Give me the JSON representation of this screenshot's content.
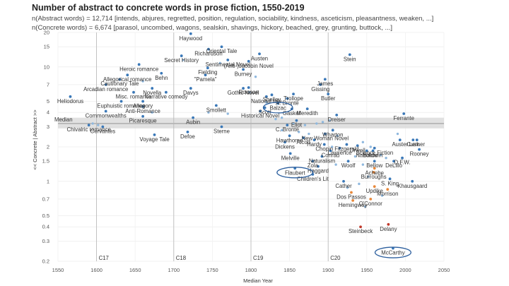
{
  "header": {
    "title": "Number of abstract to concrete words in prose fiction, 1550-2019",
    "subtitle_abstract": "n(Abstract words) = 12,714 [intends, abjures, regretted, position, regulation, sociability, kindness, asceticism, pleasantness, weaken, ...]",
    "subtitle_concrete": "n(Concrete words) = 6,674 [parasol, uncombed, wagons, sealskin, shavings, hickory, beached, grey, grunting, buttock, ...]"
  },
  "colors": {
    "point": "#3a78b8",
    "point_light": "#8fb8de",
    "point_orange": "#e8883a",
    "point_red": "#c0392b",
    "band": "#d9d9d9",
    "highlight_ellipse": "#2c5f9e"
  },
  "chart_data": {
    "type": "scatter",
    "xlabel": "Median Year",
    "ylabel": "<< Concrete | Abstract >>",
    "x_range": [
      1550,
      2050
    ],
    "y_range": [
      0.2,
      20
    ],
    "y_scale": "log",
    "x_ticks": [
      1550,
      1600,
      1650,
      1700,
      1750,
      1800,
      1850,
      1900,
      1950,
      2000,
      2050
    ],
    "y_ticks": [
      20,
      15,
      10,
      7,
      5,
      4,
      3,
      2,
      1.5,
      1,
      0.7,
      0.5,
      0.4,
      0.3,
      0.2
    ],
    "century_markers": [
      {
        "label": "C17",
        "x": 1600
      },
      {
        "label": "C18",
        "x": 1700
      },
      {
        "label": "C19",
        "x": 1800
      },
      {
        "label": "C20",
        "x": 1900
      }
    ],
    "median_line": {
      "label": "Median",
      "y": 3.2,
      "band": [
        2.9,
        3.6
      ]
    },
    "points": [
      {
        "label": "Haywood",
        "x": 1722,
        "y": 19.5
      },
      {
        "label": "Richardson",
        "x": 1745,
        "y": 14.3
      },
      {
        "label": "Oriental Tale",
        "x": 1762,
        "y": 15.0
      },
      {
        "label": "Austen",
        "x": 1811,
        "y": 13.0
      },
      {
        "label": "Stein",
        "x": 1928,
        "y": 12.8
      },
      {
        "label": "Heroic romance",
        "x": 1655,
        "y": 10.5
      },
      {
        "label": "Secret History",
        "x": 1710,
        "y": 12.5
      },
      {
        "label": "Sentimental Novel",
        "x": 1770,
        "y": 11.5
      },
      {
        "label": "(Anti-)Jacobin Novel",
        "x": 1797,
        "y": 11.2
      },
      {
        "label": "Fielding",
        "x": 1744,
        "y": 9.8
      },
      {
        "label": "Burney",
        "x": 1790,
        "y": 9.5
      },
      {
        "label": "Allegorical romance",
        "x": 1640,
        "y": 8.5
      },
      {
        "label": "Cautionary Tale",
        "x": 1630,
        "y": 7.8
      },
      {
        "label": "\"Pamela\"",
        "x": 1741,
        "y": 8.5
      },
      {
        "label": "Behn",
        "x": 1684,
        "y": 8.8
      },
      {
        "label": "Arcadian romance",
        "x": 1612,
        "y": 7.0
      },
      {
        "label": "James",
        "x": 1896,
        "y": 7.8
      },
      {
        "label": "Novella",
        "x": 1672,
        "y": 6.5
      },
      {
        "label": "Davys",
        "x": 1722,
        "y": 6.5
      },
      {
        "label": "Rowson",
        "x": 1797,
        "y": 6.6
      },
      {
        "label": "Gothic Novel",
        "x": 1790,
        "y": 6.5
      },
      {
        "label": "Gissing",
        "x": 1890,
        "y": 7.0
      },
      {
        "label": "Narrative comedy",
        "x": 1690,
        "y": 6.0
      },
      {
        "label": "Misc. romance",
        "x": 1648,
        "y": 6.0
      },
      {
        "label": "Trollope",
        "x": 1855,
        "y": 5.8
      },
      {
        "label": "Shelley",
        "x": 1827,
        "y": 5.7
      },
      {
        "label": "Butler",
        "x": 1900,
        "y": 5.8
      },
      {
        "label": "National tale",
        "x": 1820,
        "y": 5.5
      },
      {
        "label": "Euphuistic romance",
        "x": 1632,
        "y": 5.0
      },
      {
        "label": "Allegory",
        "x": 1660,
        "y": 5.0
      },
      {
        "label": "A. Brontë",
        "x": 1847,
        "y": 5.3
      },
      {
        "label": "Balzac",
        "x": 1835,
        "y": 4.8
      },
      {
        "label": "Anti-Romance",
        "x": 1660,
        "y": 4.5
      },
      {
        "label": "Smollett",
        "x": 1755,
        "y": 4.6
      },
      {
        "label": "Scott",
        "x": 1818,
        "y": 4.4
      },
      {
        "label": "Gaskell",
        "x": 1853,
        "y": 4.3
      },
      {
        "label": "Meredith",
        "x": 1873,
        "y": 4.3
      },
      {
        "label": "Heliodorus",
        "x": 1566,
        "y": 5.5
      },
      {
        "label": "Commonwealths",
        "x": 1612,
        "y": 4.1
      },
      {
        "label": "Historical Novel",
        "x": 1812,
        "y": 4.1
      },
      {
        "label": "Dreiser",
        "x": 1911,
        "y": 3.8
      },
      {
        "label": "Ferrante",
        "x": 1998,
        "y": 3.9
      },
      {
        "label": "Picaresque",
        "x": 1660,
        "y": 3.7
      },
      {
        "label": "Aubin",
        "x": 1725,
        "y": 3.6
      },
      {
        "label": "Eliot",
        "x": 1859,
        "y": 3.4
      },
      {
        "label": "Cervantes",
        "x": 1608,
        "y": 3.0
      },
      {
        "label": "Chivalric romance",
        "x": 1590,
        "y": 3.1
      },
      {
        "label": "Sterne",
        "x": 1762,
        "y": 3.0
      },
      {
        "label": "C. Brontë",
        "x": 1847,
        "y": 3.1
      },
      {
        "label": "Wharton",
        "x": 1906,
        "y": 2.8
      },
      {
        "label": "Defoe",
        "x": 1718,
        "y": 2.7
      },
      {
        "label": "New Woman Novel",
        "x": 1896,
        "y": 2.6
      },
      {
        "label": "Voyage Tale",
        "x": 1675,
        "y": 2.55
      },
      {
        "label": "Hawthorne",
        "x": 1850,
        "y": 2.5
      },
      {
        "label": "Alcott",
        "x": 1868,
        "y": 2.4
      },
      {
        "label": "Hardy",
        "x": 1882,
        "y": 2.3
      },
      {
        "label": "Auster",
        "x": 1993,
        "y": 2.3
      },
      {
        "label": "Cusk",
        "x": 2010,
        "y": 2.3
      },
      {
        "label": "Lerner",
        "x": 2015,
        "y": 2.3
      },
      {
        "label": "Dickens",
        "x": 1844,
        "y": 2.2
      },
      {
        "label": "Chopin",
        "x": 1895,
        "y": 2.1
      },
      {
        "label": "Fitzgerald",
        "x": 1924,
        "y": 2.1
      },
      {
        "label": "Orwell",
        "x": 1938,
        "y": 2.05
      },
      {
        "label": "Lawrence",
        "x": 1915,
        "y": 1.95
      },
      {
        "label": "Science Fiction",
        "x": 1960,
        "y": 1.95
      },
      {
        "label": "Rooney",
        "x": 2018,
        "y": 1.9
      },
      {
        "label": "Conrad",
        "x": 1903,
        "y": 1.85
      },
      {
        "label": "Baldwin",
        "x": 1958,
        "y": 1.85
      },
      {
        "label": "Nabokov",
        "x": 1950,
        "y": 1.85
      },
      {
        "label": "Melville",
        "x": 1851,
        "y": 1.75
      },
      {
        "label": "Naturalism",
        "x": 1892,
        "y": 1.65
      },
      {
        "label": "D.F.W.",
        "x": 1996,
        "y": 1.6
      },
      {
        "label": "Zola",
        "x": 1880,
        "y": 1.5
      },
      {
        "label": "Woolf",
        "x": 1926,
        "y": 1.5
      },
      {
        "label": "Bellow",
        "x": 1960,
        "y": 1.5
      },
      {
        "label": "DeLillo",
        "x": 1985,
        "y": 1.5
      },
      {
        "label": "Haggard",
        "x": 1887,
        "y": 1.35
      },
      {
        "label": "Achebe",
        "x": 1960,
        "y": 1.3
      },
      {
        "label": "Flaubert",
        "x": 1857,
        "y": 1.3
      },
      {
        "label": "Burroughs",
        "x": 1959,
        "y": 1.2
      },
      {
        "label": "Children's Lit",
        "x": 1880,
        "y": 1.15
      },
      {
        "label": "S. King",
        "x": 1980,
        "y": 1.05
      },
      {
        "label": "Cather",
        "x": 1920,
        "y": 1.0
      },
      {
        "label": "Khausgaard",
        "x": 2009,
        "y": 1.0
      },
      {
        "label": "Updike",
        "x": 1960,
        "y": 0.9
      },
      {
        "label": "Morrison",
        "x": 1977,
        "y": 0.85
      },
      {
        "label": "Dos Passos",
        "x": 1930,
        "y": 0.8
      },
      {
        "label": "O'Connor",
        "x": 1955,
        "y": 0.7
      },
      {
        "label": "Hemingway",
        "x": 1932,
        "y": 0.68
      },
      {
        "label": "Delany",
        "x": 1978,
        "y": 0.42
      },
      {
        "label": "Steinbeck",
        "x": 1942,
        "y": 0.4
      },
      {
        "label": "McCarthy",
        "x": 1984,
        "y": 0.26
      }
    ],
    "unlabeled_points": [
      {
        "x": 1595,
        "y": 3.2
      },
      {
        "x": 1602,
        "y": 3.1
      },
      {
        "x": 1672,
        "y": 4.0
      },
      {
        "x": 1745,
        "y": 4.0
      },
      {
        "x": 1770,
        "y": 3.9
      },
      {
        "x": 1832,
        "y": 3.5
      },
      {
        "x": 1840,
        "y": 3.6
      },
      {
        "x": 1855,
        "y": 3.2
      },
      {
        "x": 1870,
        "y": 3.1
      },
      {
        "x": 1885,
        "y": 3.2
      },
      {
        "x": 1893,
        "y": 3.3
      },
      {
        "x": 1902,
        "y": 3.4
      },
      {
        "x": 1840,
        "y": 2.8
      },
      {
        "x": 1862,
        "y": 2.7
      },
      {
        "x": 1875,
        "y": 2.6
      },
      {
        "x": 1912,
        "y": 2.5
      },
      {
        "x": 1945,
        "y": 2.2
      },
      {
        "x": 1955,
        "y": 2.0
      },
      {
        "x": 1905,
        "y": 2.0
      },
      {
        "x": 1935,
        "y": 1.65
      },
      {
        "x": 1968,
        "y": 1.7
      },
      {
        "x": 1975,
        "y": 1.6
      },
      {
        "x": 1910,
        "y": 1.4
      },
      {
        "x": 1945,
        "y": 1.4
      },
      {
        "x": 1952,
        "y": 1.1
      },
      {
        "x": 1940,
        "y": 0.95
      },
      {
        "x": 1970,
        "y": 0.75
      },
      {
        "x": 1925,
        "y": 0.88
      },
      {
        "x": 1948,
        "y": 0.6
      },
      {
        "x": 1990,
        "y": 2.6
      },
      {
        "x": 1798,
        "y": 6.0
      },
      {
        "x": 1806,
        "y": 8.2
      },
      {
        "x": 1760,
        "y": 10.8
      },
      {
        "x": 1712,
        "y": 11.5
      },
      {
        "x": 1660,
        "y": 7.5
      },
      {
        "x": 1820,
        "y": 4.9
      }
    ],
    "orange_points": [
      "Updike",
      "Morrison",
      "Dos Passos",
      "O'Connor",
      "Hemingway",
      "S. Khausgaard",
      "Burroughs",
      "Achebe"
    ],
    "highlighted": [
      "Balzac",
      "Flaubert",
      "McCarthy"
    ]
  }
}
